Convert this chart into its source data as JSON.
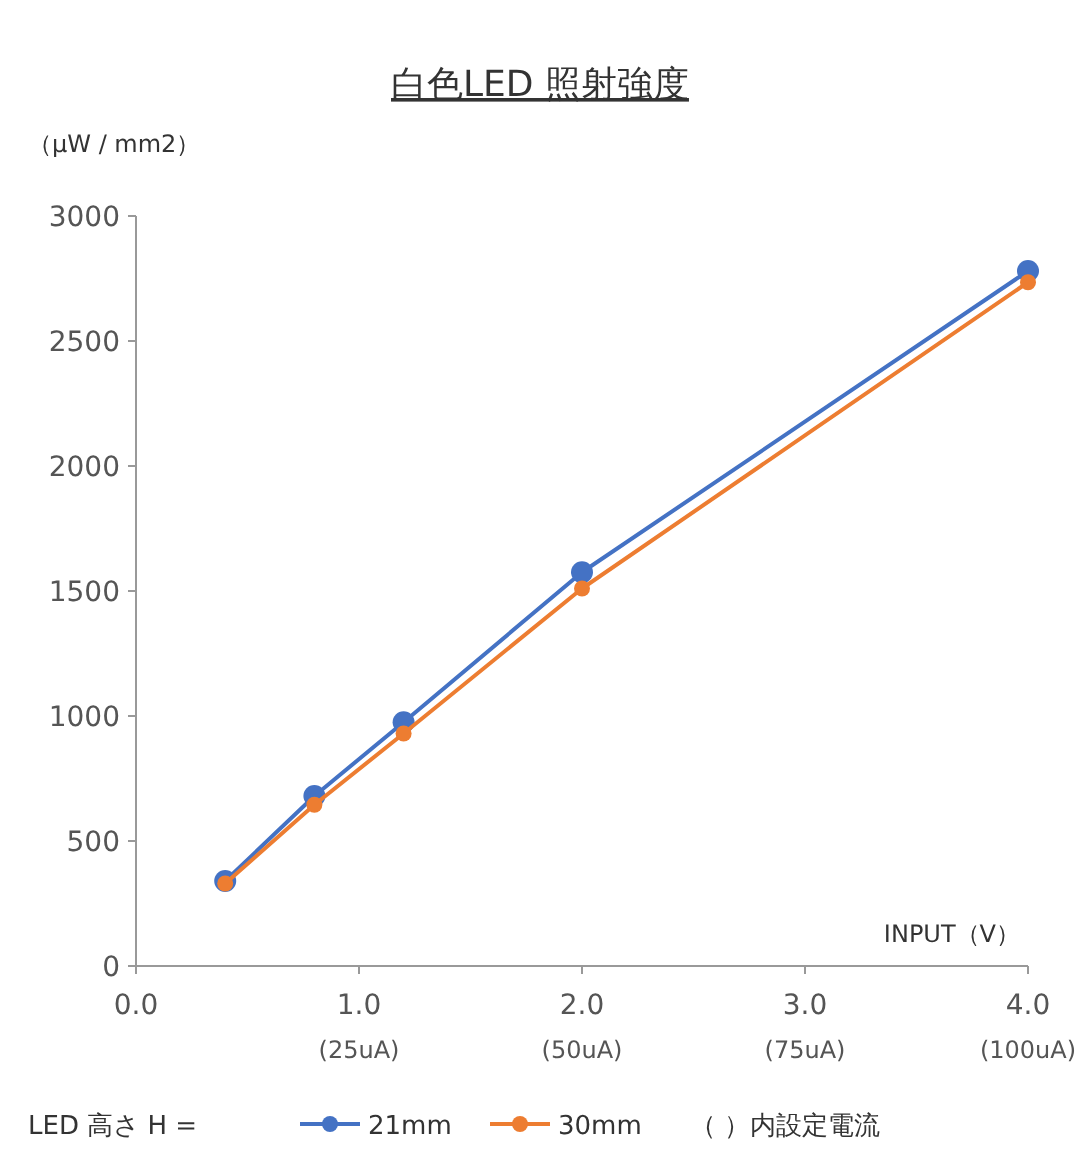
{
  "chart_data": {
    "type": "line",
    "title": "白色LED  照射強度",
    "ylabel": "（μW / mm2）",
    "xlabel": "INPUT（V）",
    "legend_title": "LED  高さ H =",
    "annotations": [
      "（  ）内設定電流",
      "(25uA)",
      "(50uA)",
      "(75uA)",
      "(100uA)"
    ],
    "x": [
      0.4,
      0.8,
      1.2,
      2.0,
      4.0
    ],
    "series": [
      {
        "name": "21mm",
        "color": "#4472c4",
        "values": [
          340,
          680,
          975,
          1575,
          2780
        ]
      },
      {
        "name": "30mm",
        "color": "#ed7d31",
        "values": [
          330,
          645,
          930,
          1510,
          2735
        ]
      }
    ],
    "xlim": [
      0,
      4
    ],
    "xticks": [
      {
        "value": 0,
        "label": "0.0"
      },
      {
        "value": 1,
        "label": "1.0"
      },
      {
        "value": 2,
        "label": "2.0"
      },
      {
        "value": 3,
        "label": "3.0"
      },
      {
        "value": 4,
        "label": "4.0"
      }
    ],
    "ylim": [
      0,
      3000
    ],
    "yticks": [
      0,
      500,
      1000,
      1500,
      2000,
      2500,
      3000
    ],
    "grid": false,
    "legend": "bottom",
    "marker": "circle",
    "line_style": "solid"
  }
}
